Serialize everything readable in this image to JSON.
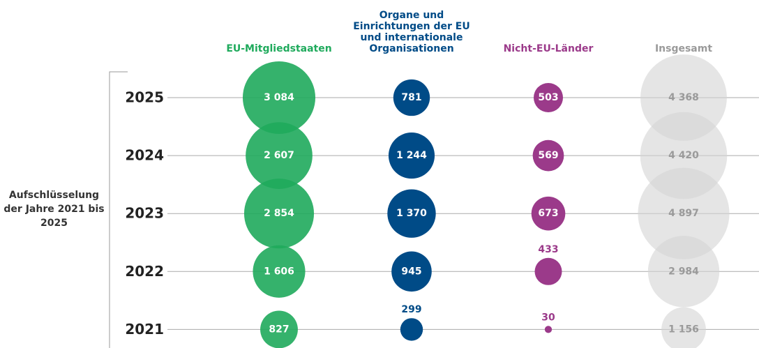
{
  "chart_data": {
    "type": "bubble",
    "ylabel": "Aufschlüsselung der Jahre 2021 bis 2025",
    "categories": [
      "2025",
      "2024",
      "2023",
      "2022",
      "2021"
    ],
    "series": [
      {
        "name": "EU-Mitgliedstaaten",
        "color": "#1faa5c",
        "values": [
          3084,
          2607,
          2854,
          1606,
          827
        ],
        "value_labels": [
          "3 084",
          "2 607",
          "2 854",
          "1 606",
          "827"
        ]
      },
      {
        "name": "Organe und Einrichtungen der EU und internationale Organisationen",
        "color": "#004b87",
        "values": [
          781,
          1244,
          1370,
          945,
          299
        ],
        "value_labels": [
          "781",
          "1 244",
          "1 370",
          "945",
          "299"
        ]
      },
      {
        "name": "Nicht-EU-Länder",
        "color": "#9b3a8a",
        "values": [
          503,
          569,
          673,
          433,
          30
        ],
        "value_labels": [
          "503",
          "569",
          "673",
          "433",
          "30"
        ]
      },
      {
        "name": "Insgesamt",
        "color": "#9a9a9a",
        "values": [
          4368,
          4420,
          4897,
          2984,
          1156
        ],
        "value_labels": [
          "4 368",
          "4 420",
          "4 897",
          "2 984",
          "1 156"
        ]
      }
    ]
  }
}
